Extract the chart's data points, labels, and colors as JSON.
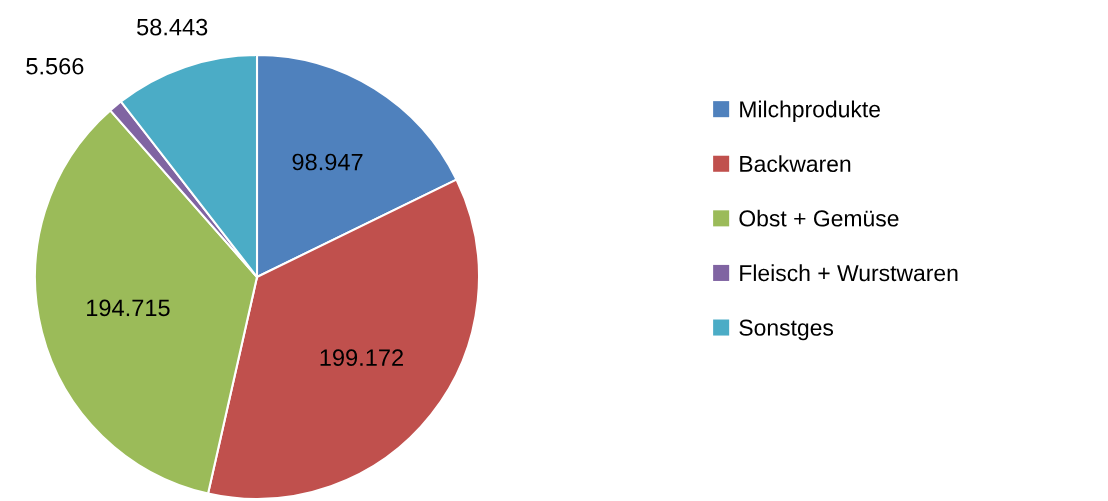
{
  "chart_data": {
    "type": "pie",
    "categories": [
      "Milchprodukte",
      "Backwaren",
      "Obst + Gemüse",
      "Fleisch + Wurstwaren",
      "Sonstges"
    ],
    "values": [
      98947,
      199172,
      194715,
      5566,
      58443
    ],
    "colors": [
      "#4f81bd",
      "#c0504d",
      "#9bbb59",
      "#8064a2",
      "#4bacc6"
    ],
    "value_labels": [
      "98.947",
      "199.172",
      "194.715",
      "5.566",
      "58.443"
    ],
    "legend": "right"
  }
}
